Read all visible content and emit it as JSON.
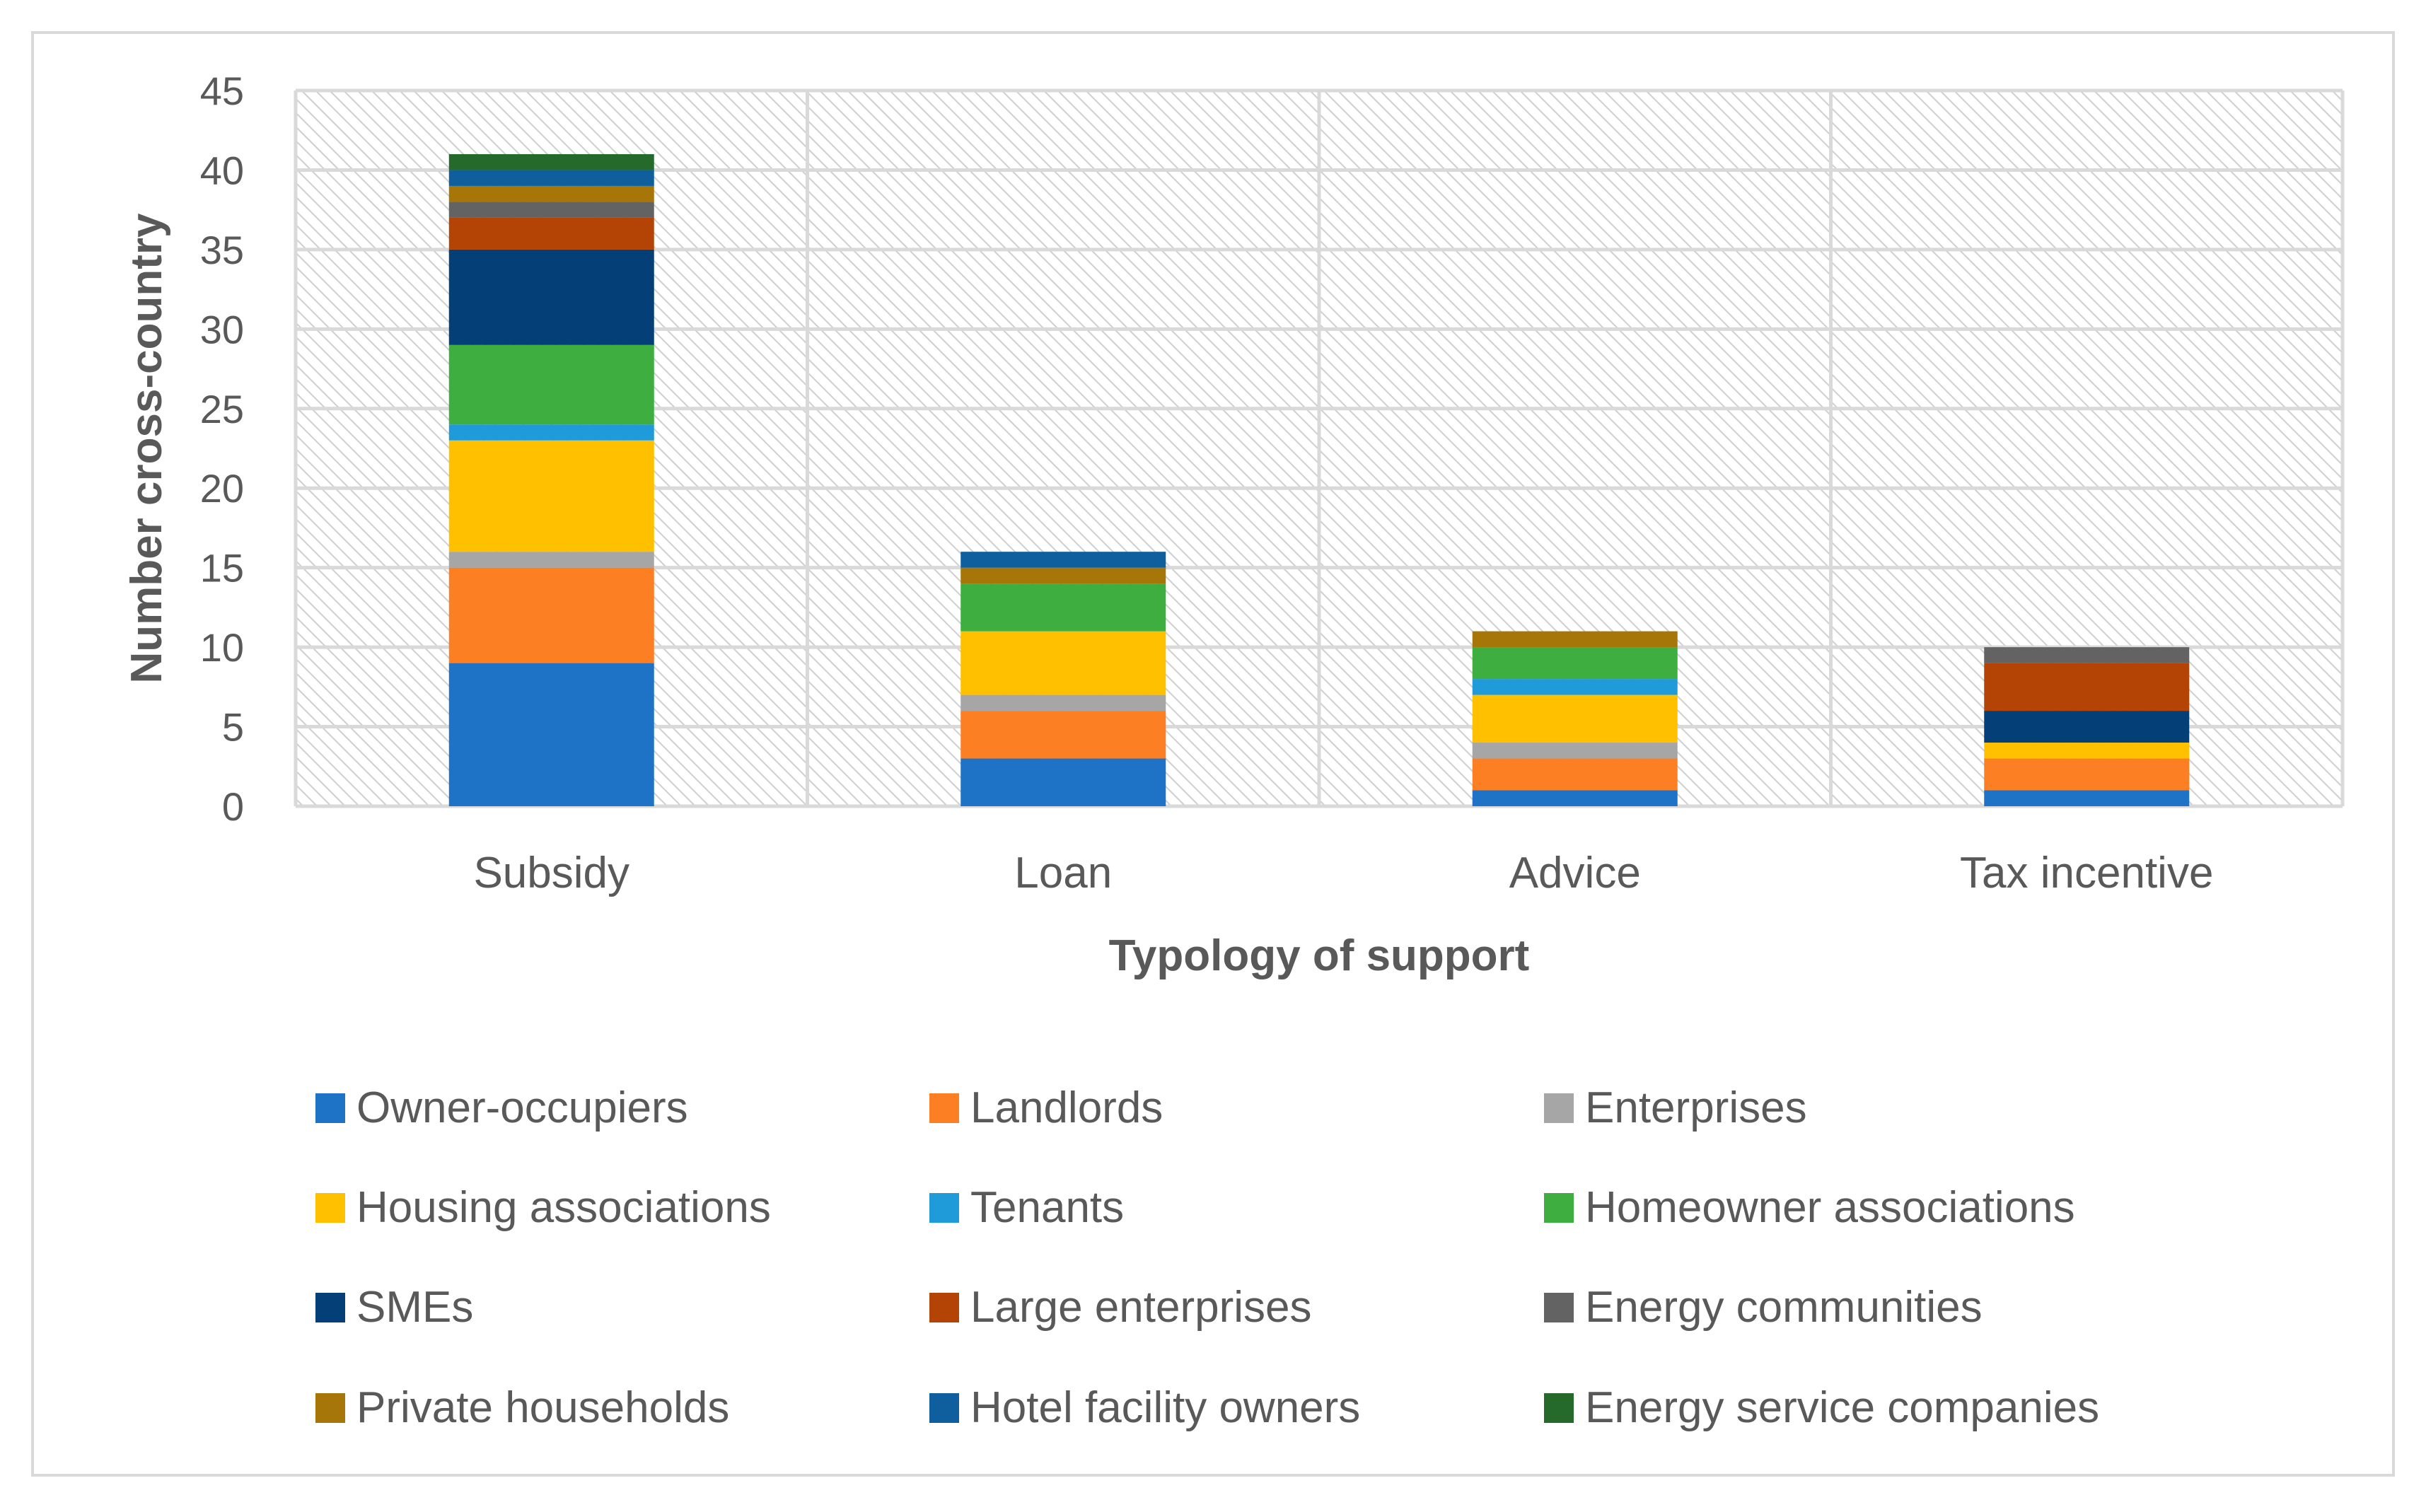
{
  "chart_data": {
    "type": "bar",
    "stacked": true,
    "title": "",
    "xlabel": "Typology of support",
    "ylabel": "Number cross-country",
    "ylim": [
      0,
      45
    ],
    "yticks": [
      0,
      5,
      10,
      15,
      20,
      25,
      30,
      35,
      40,
      45
    ],
    "grid": true,
    "legend_position": "bottom",
    "categories": [
      "Subsidy",
      "Loan",
      "Advice",
      "Tax incentive"
    ],
    "series": [
      {
        "name": "Owner-occupiers",
        "color": "#1f73c6",
        "values": [
          9,
          3,
          1,
          1
        ]
      },
      {
        "name": "Landlords",
        "color": "#fd7f23",
        "values": [
          6,
          3,
          2,
          2
        ]
      },
      {
        "name": "Enterprises",
        "color": "#a6a6a6",
        "values": [
          1,
          1,
          1,
          0
        ]
      },
      {
        "name": "Housing associations",
        "color": "#ffc000",
        "values": [
          7,
          4,
          3,
          1
        ]
      },
      {
        "name": "Tenants",
        "color": "#209bd9",
        "values": [
          1,
          0,
          1,
          0
        ]
      },
      {
        "name": "Homeowner associations",
        "color": "#3dae3f",
        "values": [
          5,
          3,
          2,
          0
        ]
      },
      {
        "name": "SMEs",
        "color": "#043f78",
        "values": [
          6,
          0,
          0,
          2
        ]
      },
      {
        "name": "Large enterprises",
        "color": "#b44405",
        "values": [
          2,
          0,
          0,
          3
        ]
      },
      {
        "name": "Energy communities",
        "color": "#636363",
        "values": [
          1,
          0,
          0,
          1
        ]
      },
      {
        "name": "Private households",
        "color": "#a67708",
        "values": [
          1,
          1,
          1,
          0
        ]
      },
      {
        "name": "Hotel facility owners",
        "color": "#0f5f9e",
        "values": [
          1,
          1,
          0,
          0
        ]
      },
      {
        "name": "Energy service companies",
        "color": "#256a2a",
        "values": [
          1,
          0,
          0,
          0
        ]
      }
    ]
  }
}
